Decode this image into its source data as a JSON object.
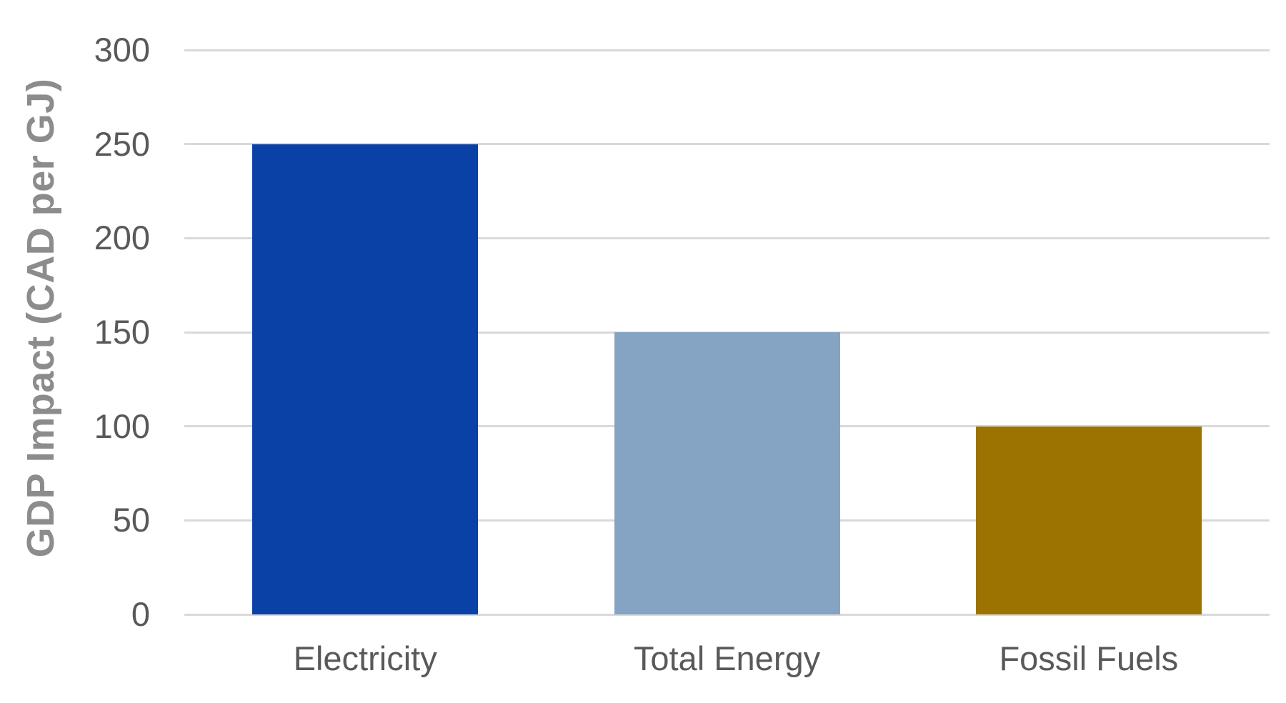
{
  "chart_data": {
    "type": "bar",
    "title": "",
    "categories": [
      "Electricity",
      "Total Energy",
      "Fossil Fuels"
    ],
    "values": [
      250,
      150,
      100
    ],
    "bar_colors": [
      "#0a41a6",
      "#85a3c3",
      "#9c7300"
    ],
    "xlabel": "",
    "ylabel": "GDP Impact (CAD per GJ)",
    "ylim": [
      0,
      300
    ],
    "yticks": [
      0,
      50,
      100,
      150,
      200,
      250,
      300
    ],
    "grid": "horizontal-only",
    "legend": "none",
    "gridline_color": "#d9d9d9",
    "tick_label_color": "#595959",
    "category_label_color": "#595959",
    "axis_title_color": "#8c8c8c",
    "background_color": "#ffffff"
  }
}
